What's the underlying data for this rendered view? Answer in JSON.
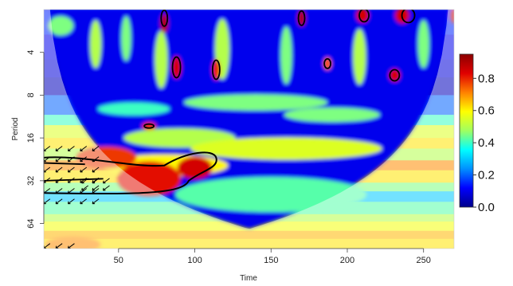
{
  "chart_data": {
    "type": "heatmap",
    "title": "",
    "xlabel": "Time",
    "ylabel": "Period",
    "x_ticks": [
      50,
      100,
      150,
      200,
      250
    ],
    "y_ticks": [
      4,
      8,
      16,
      32,
      64
    ],
    "xlim": [
      1,
      270
    ],
    "ylim_period": [
      2,
      96
    ],
    "y_scale": "log2",
    "colorbar": {
      "ticks": [
        0.0,
        0.2,
        0.4,
        0.6,
        0.8
      ],
      "labels": [
        "0.0",
        "0.2",
        "0.4",
        "0.6",
        "0.8"
      ],
      "range": [
        0,
        0.95
      ],
      "colors": [
        "#00008b",
        "#0000ff",
        "#0090ff",
        "#00ffff",
        "#a0ff60",
        "#ffff00",
        "#ff8000",
        "#e00000",
        "#8b0000"
      ]
    },
    "cone_of_influence": true,
    "significance_contours": true,
    "phase_arrows": true
  }
}
